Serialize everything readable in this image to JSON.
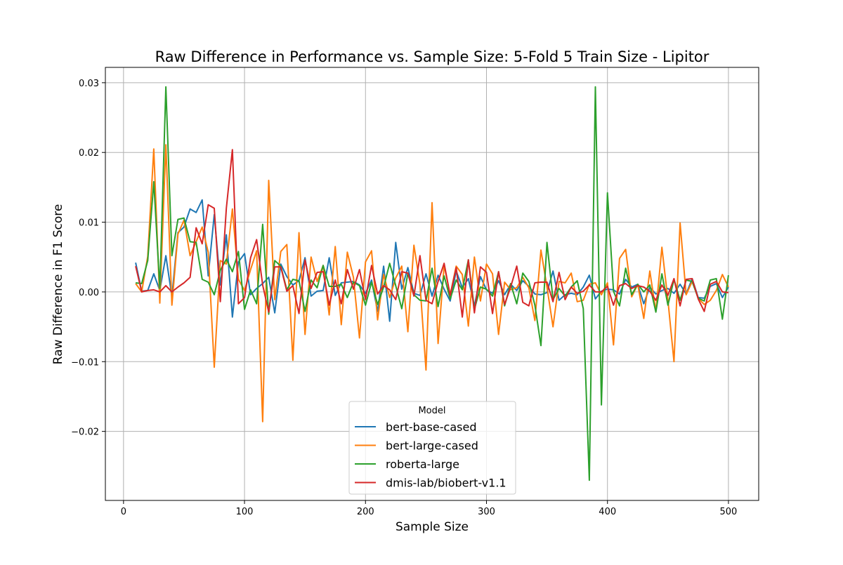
{
  "chart_data": {
    "type": "line",
    "title": "Raw Difference in Performance vs. Sample Size: 5-Fold 5 Train Size - Lipitor",
    "xlabel": "Sample Size",
    "ylabel": "Raw Difference in F1 Score",
    "xlim": [
      -15,
      525
    ],
    "ylim": [
      -0.0299,
      0.0322
    ],
    "xticks": [
      0,
      100,
      200,
      300,
      400,
      500
    ],
    "xtick_labels": [
      "0",
      "100",
      "200",
      "300",
      "400",
      "500"
    ],
    "yticks": [
      -0.02,
      -0.01,
      0.0,
      0.01,
      0.02,
      0.03
    ],
    "ytick_labels": [
      "−0.02",
      "−0.01",
      "0.00",
      "0.01",
      "0.02",
      "0.03"
    ],
    "grid": true,
    "legend": {
      "title": "Model",
      "position": "lower-center"
    },
    "x": [
      10,
      15,
      20,
      25,
      30,
      35,
      40,
      45,
      50,
      55,
      60,
      65,
      70,
      75,
      80,
      85,
      90,
      95,
      100,
      105,
      110,
      115,
      120,
      125,
      130,
      135,
      140,
      145,
      150,
      155,
      160,
      165,
      170,
      175,
      180,
      185,
      190,
      195,
      200,
      205,
      210,
      215,
      220,
      225,
      230,
      235,
      240,
      245,
      250,
      255,
      260,
      265,
      270,
      275,
      280,
      285,
      290,
      295,
      300,
      305,
      310,
      315,
      320,
      325,
      330,
      335,
      340,
      345,
      350,
      355,
      360,
      365,
      370,
      375,
      380,
      385,
      390,
      395,
      400,
      405,
      410,
      415,
      420,
      425,
      430,
      435,
      440,
      445,
      450,
      455,
      460,
      465,
      470,
      475,
      480,
      485,
      490,
      495,
      500
    ],
    "series": [
      {
        "name": "bert-base-cased",
        "color": "#1f77b4",
        "values": [
          0.0042,
          0.0001,
          0.0002,
          0.0026,
          0.0002,
          0.0052,
          -0.0007,
          0.0085,
          0.0093,
          0.0119,
          0.0114,
          0.0132,
          0.0023,
          0.0111,
          0.001,
          0.0082,
          -0.0036,
          0.0043,
          0.0055,
          -0.0004,
          0.0005,
          0.0012,
          0.0021,
          -0.003,
          0.004,
          0.0022,
          0.001,
          0.0016,
          0.0049,
          -0.0006,
          0.0001,
          0.0002,
          0.0049,
          -0.0005,
          0.0013,
          0.0014,
          0.0015,
          0.001,
          -0.0002,
          0.0017,
          -0.0028,
          0.0037,
          -0.0042,
          0.0071,
          0.0004,
          0.0035,
          -0.0002,
          -0.0005,
          0.0026,
          -0.0006,
          0.0024,
          0.0004,
          -0.0013,
          0.003,
          0.0006,
          0.0019,
          -0.002,
          0.0022,
          0.0003,
          -0.0002,
          0.0016,
          -0.0004,
          0.0011,
          0.0002,
          0.0016,
          0.0008,
          -0.0003,
          -0.0004,
          -0.0001,
          0.003,
          -0.0012,
          -0.0004,
          -0.0002,
          -0.0004,
          0.0007,
          0.0024,
          -0.001,
          0.0001,
          0.0004,
          0.0003,
          -0.0003,
          0.0018,
          0.0007,
          0.0011,
          -0.0017,
          0.0007,
          -0.0003,
          0.0002,
          0.0005,
          -0.0002,
          0.0011,
          -0.0003,
          0.0019,
          -0.0008,
          -0.0009,
          0.0008,
          0.0012,
          -0.0008,
          0.0007
        ]
      },
      {
        "name": "bert-large-cased",
        "color": "#ff7f0e",
        "values": [
          0.0012,
          0.0,
          0.0051,
          0.0205,
          -0.0016,
          0.0211,
          -0.0019,
          0.0083,
          0.0103,
          0.0052,
          0.0072,
          0.0093,
          0.0057,
          -0.0108,
          0.0045,
          0.004,
          0.0119,
          0.0018,
          0.0002,
          0.0032,
          0.0059,
          -0.0186,
          0.016,
          -0.0011,
          0.0058,
          0.0068,
          -0.0098,
          0.0085,
          -0.0061,
          0.005,
          0.0015,
          0.0038,
          -0.0033,
          0.0065,
          -0.0047,
          0.0057,
          0.0021,
          -0.0066,
          0.0043,
          0.0059,
          -0.004,
          0.0025,
          -0.0008,
          0.002,
          0.0037,
          -0.0057,
          0.0067,
          0.0011,
          -0.0112,
          0.0128,
          -0.0074,
          0.0038,
          -0.0004,
          0.0037,
          0.0025,
          -0.0049,
          0.005,
          -0.0013,
          0.004,
          0.0026,
          -0.0061,
          0.0014,
          0.0003,
          0.0006,
          0.0021,
          0.0006,
          -0.0041,
          0.006,
          0.0007,
          -0.005,
          0.0015,
          0.0013,
          0.0027,
          -0.0014,
          -0.0012,
          0.0011,
          0.0013,
          -0.0004,
          0.0013,
          -0.0076,
          0.0048,
          0.0061,
          -0.0007,
          0.0011,
          -0.0038,
          0.003,
          -0.0028,
          0.0064,
          -0.0012,
          -0.01,
          0.0099,
          -0.0004,
          0.0015,
          -0.0009,
          -0.0018,
          -0.0012,
          0.0002,
          0.0025,
          0.0007
        ]
      },
      {
        "name": "roberta-large",
        "color": "#2ca02c",
        "values": [
          0.0013,
          0.0012,
          0.0045,
          0.0158,
          0.0005,
          0.0294,
          0.0052,
          0.0104,
          0.0106,
          0.0072,
          0.0071,
          0.0018,
          0.0014,
          -0.0004,
          0.0031,
          0.0047,
          0.0029,
          0.0058,
          -0.0025,
          0.0003,
          -0.0017,
          0.0097,
          -0.0032,
          0.0045,
          0.0037,
          0.0003,
          0.0018,
          0.0016,
          -0.0028,
          0.0017,
          0.0006,
          0.0038,
          0.0008,
          0.0008,
          0.0011,
          -0.0008,
          0.0014,
          0.0009,
          -0.0019,
          0.0014,
          -0.0018,
          0.0007,
          0.0041,
          0.0009,
          -0.0024,
          0.0027,
          -0.0004,
          -0.0012,
          -0.0013,
          0.0034,
          -0.0021,
          0.0023,
          -0.001,
          0.0017,
          0.0003,
          0.0046,
          -0.0025,
          0.0007,
          0.0004,
          -0.0006,
          0.0029,
          -0.002,
          0.0012,
          -0.0017,
          0.0027,
          0.0015,
          -0.0019,
          -0.0077,
          0.0071,
          -0.0011,
          0.0005,
          -0.0006,
          0.0007,
          0.0016,
          -0.0024,
          -0.027,
          0.0294,
          -0.0162,
          0.0142,
          0.0001,
          -0.002,
          0.0034,
          -0.0004,
          0.0011,
          0.0,
          0.001,
          -0.0029,
          0.0026,
          -0.0019,
          0.0018,
          -0.0012,
          0.0017,
          0.0015,
          -0.0009,
          -0.0013,
          0.0017,
          0.0019,
          -0.0039,
          0.0024
        ]
      },
      {
        "name": "dmis-lab/biobert-v1.1",
        "color": "#d62728",
        "values": [
          0.0037,
          0.0,
          0.0002,
          0.0003,
          0.0,
          0.0009,
          0.0,
          0.0007,
          0.0013,
          0.0021,
          0.0092,
          0.0069,
          0.0125,
          0.012,
          -0.0014,
          0.012,
          0.0204,
          -0.0017,
          -0.0008,
          0.0049,
          0.0075,
          0.001,
          -0.0029,
          0.0036,
          0.0036,
          0.0001,
          0.0009,
          -0.0031,
          0.0046,
          0.0005,
          0.0028,
          0.0029,
          -0.0019,
          0.0017,
          -0.0017,
          0.0032,
          0.0004,
          0.0032,
          -0.0011,
          0.0038,
          -0.0003,
          0.0009,
          0.0003,
          -0.0011,
          0.0029,
          0.0027,
          -0.0006,
          0.0052,
          -0.0012,
          -0.0017,
          0.0015,
          0.0041,
          -0.0005,
          0.0035,
          -0.0036,
          0.0046,
          -0.003,
          0.0036,
          0.0028,
          -0.0031,
          0.0029,
          -0.0018,
          0.0007,
          0.0037,
          -0.0015,
          -0.002,
          0.0013,
          0.0014,
          0.0014,
          -0.0014,
          0.0028,
          -0.0011,
          0.0007,
          -0.0002,
          0.0001,
          0.001,
          0.0,
          0.0,
          0.0008,
          -0.0019,
          0.0009,
          0.0012,
          0.0005,
          0.0009,
          0.0007,
          0.0001,
          -0.0012,
          0.001,
          -0.0005,
          0.0019,
          -0.002,
          0.0018,
          0.0019,
          -0.001,
          -0.0028,
          0.0011,
          0.0015,
          0.0,
          -0.0001
        ]
      }
    ]
  }
}
